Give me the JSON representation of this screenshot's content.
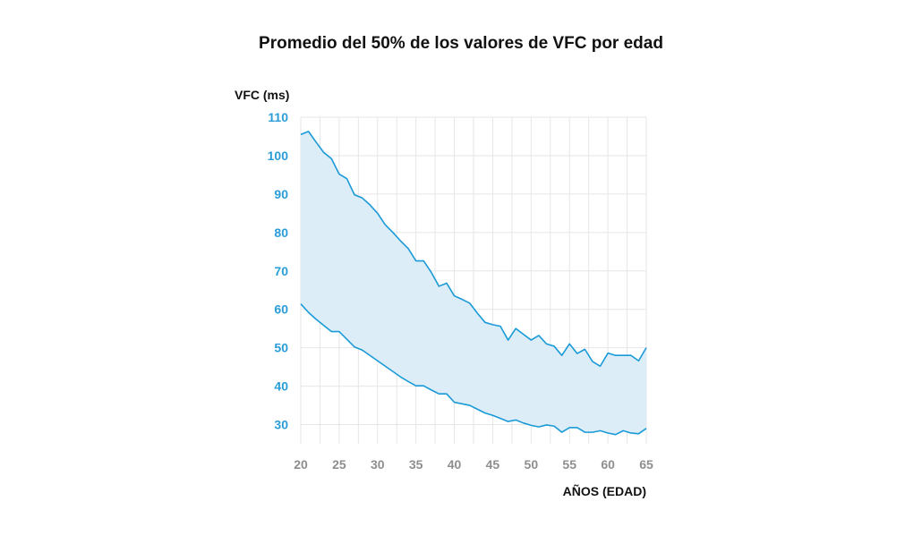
{
  "chart_data": {
    "type": "area",
    "title": "Promedio del 50% de los valores de VFC por edad",
    "xlabel": "AÑOS (EDAD)",
    "ylabel": "VFC (ms)",
    "xlim": [
      20,
      65
    ],
    "ylim": [
      25,
      110
    ],
    "x_ticks": [
      20,
      25,
      30,
      35,
      40,
      45,
      50,
      55,
      60,
      65
    ],
    "y_ticks": [
      30,
      40,
      50,
      60,
      70,
      80,
      90,
      100,
      110
    ],
    "grid": true,
    "colors": {
      "band_fill": "#dcedf8",
      "line": "#1a9ad6",
      "ytick": "#2a9dd8",
      "xtick": "#8e8e8e",
      "grid": "#e6e6e6"
    },
    "series": [
      {
        "name": "upper",
        "x": [
          20,
          21,
          22,
          23,
          24,
          25,
          26,
          27,
          28,
          29,
          30,
          31,
          32,
          33,
          34,
          35,
          36,
          37,
          38,
          39,
          40,
          41,
          42,
          43,
          44,
          45,
          46,
          47,
          48,
          49,
          50,
          51,
          52,
          53,
          54,
          55,
          56,
          57,
          58,
          59,
          60,
          61,
          62,
          63,
          64,
          65
        ],
        "values": [
          105.5,
          106.3,
          103.5,
          100.8,
          99.2,
          95.2,
          94.0,
          89.8,
          89.0,
          87.2,
          85.0,
          82.0,
          80.0,
          77.8,
          75.8,
          72.6,
          72.6,
          69.6,
          66.0,
          66.8,
          63.5,
          62.6,
          61.6,
          59.0,
          56.6,
          56.0,
          55.6,
          52.0,
          55.0,
          53.5,
          52.0,
          53.2,
          51.0,
          50.4,
          48.0,
          51.0,
          48.5,
          49.6,
          46.4,
          45.2,
          48.6,
          48.0,
          48.0,
          48.0,
          46.6,
          50.0
        ]
      },
      {
        "name": "lower",
        "x": [
          20,
          21,
          22,
          23,
          24,
          25,
          26,
          27,
          28,
          29,
          30,
          31,
          32,
          33,
          34,
          35,
          36,
          37,
          38,
          39,
          40,
          41,
          42,
          43,
          44,
          45,
          46,
          47,
          48,
          49,
          50,
          51,
          52,
          53,
          54,
          55,
          56,
          57,
          58,
          59,
          60,
          61,
          62,
          63,
          64,
          65
        ],
        "values": [
          61.4,
          59.2,
          57.4,
          55.8,
          54.2,
          54.2,
          52.2,
          50.2,
          49.4,
          48.0,
          46.6,
          45.2,
          43.8,
          42.4,
          41.2,
          40.1,
          40.1,
          39.0,
          38.0,
          38.0,
          35.8,
          35.4,
          35.0,
          34.0,
          33.0,
          32.4,
          31.6,
          30.8,
          31.2,
          30.4,
          29.8,
          29.4,
          29.9,
          29.6,
          28.0,
          29.2,
          29.2,
          28.0,
          28.0,
          28.4,
          27.8,
          27.4,
          28.4,
          27.8,
          27.6,
          29.0
        ]
      }
    ]
  }
}
